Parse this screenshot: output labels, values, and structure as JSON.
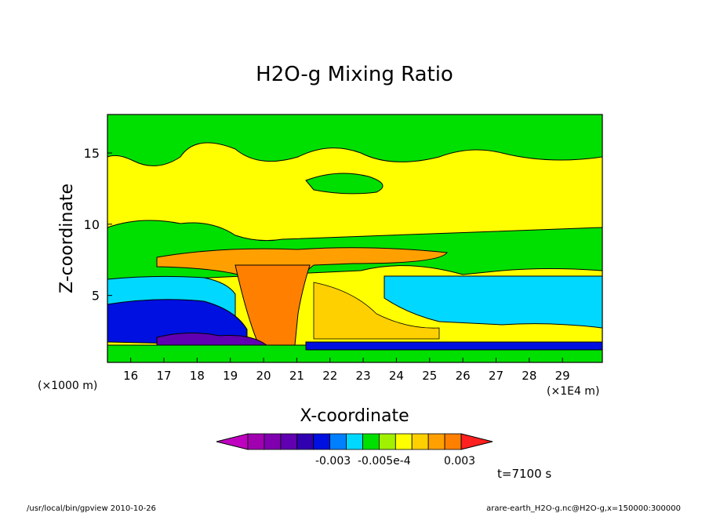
{
  "chart_data": {
    "type": "heatmap",
    "title": "H2O-g Mixing Ratio",
    "xlabel": "X-coordinate",
    "ylabel": "Z-coordinate",
    "x_unit_left": "(×1000 m)",
    "x_unit_right": "(×1E4 m)",
    "x_ticks": [
      "16",
      "17",
      "18",
      "19",
      "20",
      "21",
      "22",
      "23",
      "24",
      "25",
      "26",
      "27",
      "28",
      "29"
    ],
    "y_ticks": [
      "5",
      "10",
      "15"
    ],
    "xlim": [
      15.3,
      30.2
    ],
    "ylim": [
      0.3,
      17.7
    ],
    "colorbar_labels": [
      "-0.003",
      "-0.005e-4",
      "0.003"
    ],
    "colorbar_colors": [
      "#c000c0",
      "#a000b0",
      "#8000b0",
      "#6000b0",
      "#3000b0",
      "#0010e0",
      "#0080ff",
      "#00d8ff",
      "#00e000",
      "#a0f000",
      "#ffff00",
      "#ffd000",
      "#ffa000",
      "#ff8000",
      "#ff2020"
    ],
    "time_label": "t=7100 s",
    "footer_left": "/usr/local/bin/gpview  2010-10-26",
    "footer_right": "arare-earth_H2O-g.nc@H2O-g,x=150000:300000"
  }
}
